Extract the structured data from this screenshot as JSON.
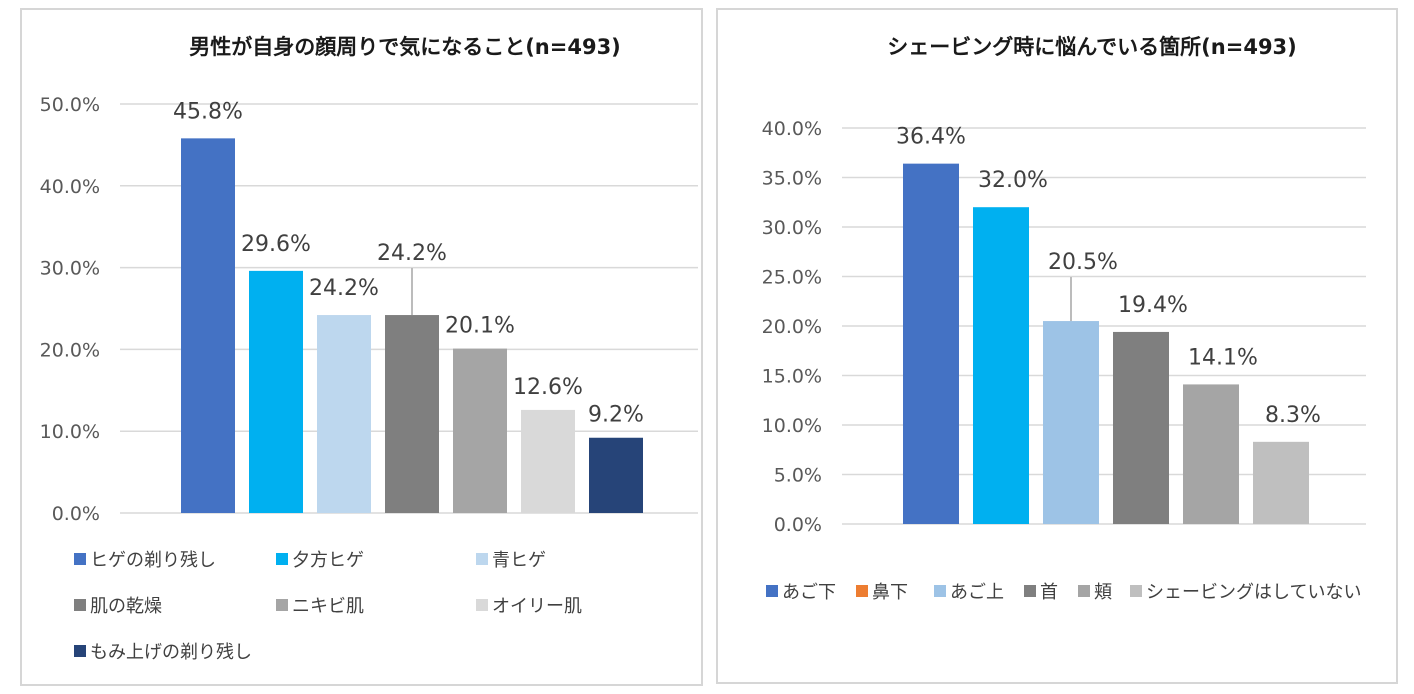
{
  "chart_data": [
    {
      "type": "bar",
      "title": "男性が自身の顔周りで気になること(n=493)",
      "categories": [
        "ヒゲの剃り残し",
        "夕方ヒゲ",
        "青ヒゲ",
        "肌の乾燥",
        "ニキビ肌",
        "オイリー肌",
        "もみ上げの剃り残し"
      ],
      "values": [
        45.8,
        29.6,
        24.2,
        24.2,
        20.1,
        12.6,
        9.2
      ],
      "value_labels": [
        "45.8%",
        "29.6%",
        "24.2%",
        "24.2%",
        "20.1%",
        "12.6%",
        "9.2%"
      ],
      "colors": [
        "#4472c4",
        "#00b0f0",
        "#bdd7ee",
        "#7f7f7f",
        "#a5a5a5",
        "#d9d9d9",
        "#264478"
      ],
      "yticks": [
        "0.0%",
        "10.0%",
        "20.0%",
        "30.0%",
        "40.0%",
        "50.0%"
      ],
      "ylim": [
        0,
        50
      ],
      "grid": true,
      "legend_position": "bottom"
    },
    {
      "type": "bar",
      "title": "シェービング時に悩んでいる箇所(n=493)",
      "categories": [
        "あご下",
        "鼻下",
        "あご上",
        "首",
        "頬",
        "シェービングはしていない"
      ],
      "values": [
        36.4,
        32.0,
        20.5,
        19.4,
        14.1,
        8.3
      ],
      "value_labels": [
        "36.4%",
        "32.0%",
        "20.5%",
        "19.4%",
        "14.1%",
        "8.3%"
      ],
      "colors": [
        "#4472c4",
        "#00b0f0",
        "#9dc3e6",
        "#7f7f7f",
        "#a5a5a5",
        "#bfbfbf"
      ],
      "legend_colors": [
        "#4472c4",
        "#ed7d31",
        "#9dc3e6",
        "#7f7f7f",
        "#a5a5a5",
        "#bfbfbf"
      ],
      "yticks": [
        "0.0%",
        "5.0%",
        "10.0%",
        "15.0%",
        "20.0%",
        "25.0%",
        "30.0%",
        "35.0%",
        "40.0%"
      ],
      "ylim": [
        0,
        40
      ],
      "grid": true,
      "legend_position": "bottom"
    }
  ]
}
